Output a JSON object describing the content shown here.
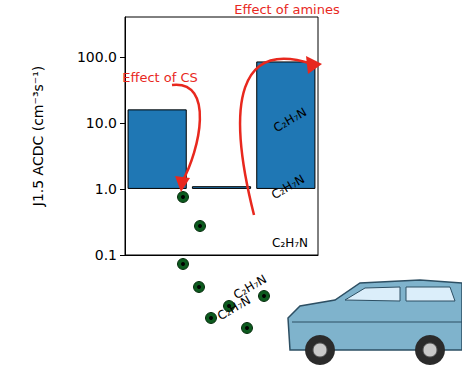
{
  "chart_data": {
    "type": "bar",
    "categories": [
      null,
      null,
      null
    ],
    "values": [
      16,
      1.1,
      85
    ],
    "color": "#1f77b4",
    "y_label": "J1.5 ACDC (cm⁻³s⁻¹)",
    "ylim": [
      0.1,
      400
    ],
    "yticks": [
      0.1,
      {
        "value": 1,
        "label": "1.0"
      },
      {
        "value": 10,
        "label": "10.0"
      },
      {
        "value": 100,
        "label": "100.0"
      }
    ],
    "log": "y",
    "grid": false,
    "tick_labels": "y",
    "annotations": [
      {
        "text": "Effect of CS"
      },
      {
        "text": "Effect of amines"
      },
      {
        "text": "C₂H₇N"
      },
      {
        "text": "C₂H₇N"
      },
      {
        "text": "C₂H₇N"
      },
      {
        "text": "C₂H₇N"
      },
      {
        "text": "C₂H₇N"
      }
    ]
  }
}
